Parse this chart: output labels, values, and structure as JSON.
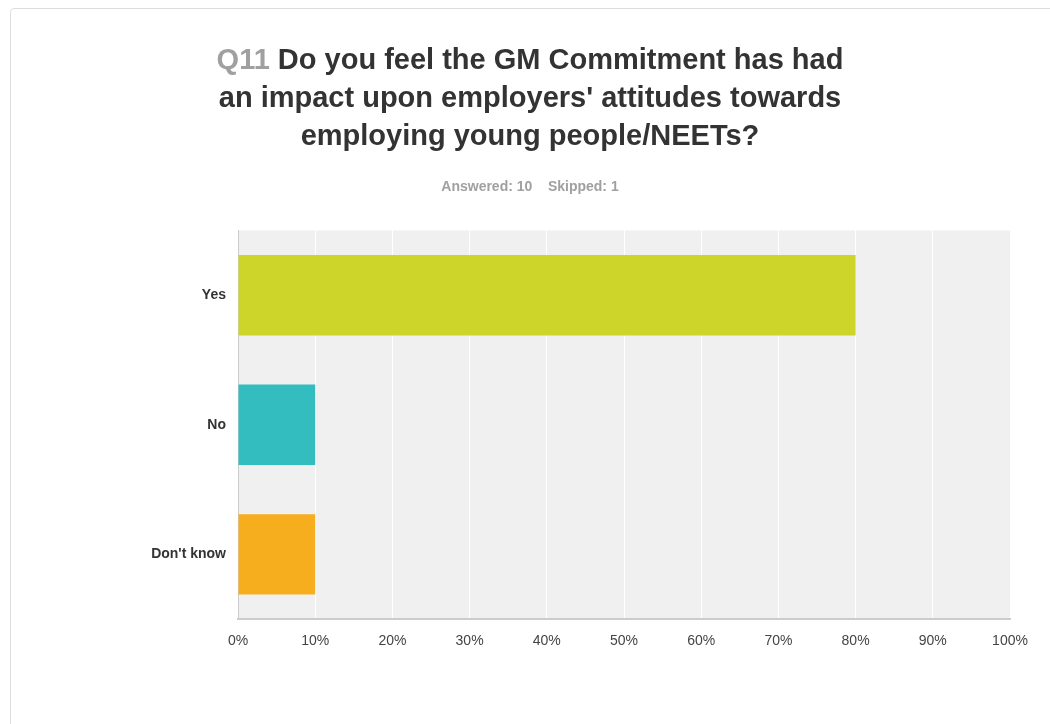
{
  "chart_data": {
    "type": "bar",
    "orientation": "horizontal",
    "title": "Q11 Do you feel the GM Commitment has had an impact upon employers' attitudes towards employing young people/NEETs?",
    "subtitle": "Answered: 10    Skipped: 1",
    "categories": [
      "Yes",
      "No",
      "Don't know"
    ],
    "values": [
      80,
      10,
      10
    ],
    "colors": [
      "#cdd42a",
      "#33bdbf",
      "#f6ae1f"
    ],
    "xlim": [
      0,
      100
    ],
    "xticks": [
      {
        "value": 0,
        "label": "0%"
      },
      {
        "value": 10,
        "label": "10%"
      },
      {
        "value": 20,
        "label": "20%"
      },
      {
        "value": 30,
        "label": "30%"
      },
      {
        "value": 40,
        "label": "40%"
      },
      {
        "value": 50,
        "label": "50%"
      },
      {
        "value": 60,
        "label": "60%"
      },
      {
        "value": 70,
        "label": "70%"
      },
      {
        "value": 80,
        "label": "80%"
      },
      {
        "value": 90,
        "label": "90%"
      },
      {
        "value": 100,
        "label": "100%"
      }
    ],
    "grid": "x",
    "legend": false
  }
}
